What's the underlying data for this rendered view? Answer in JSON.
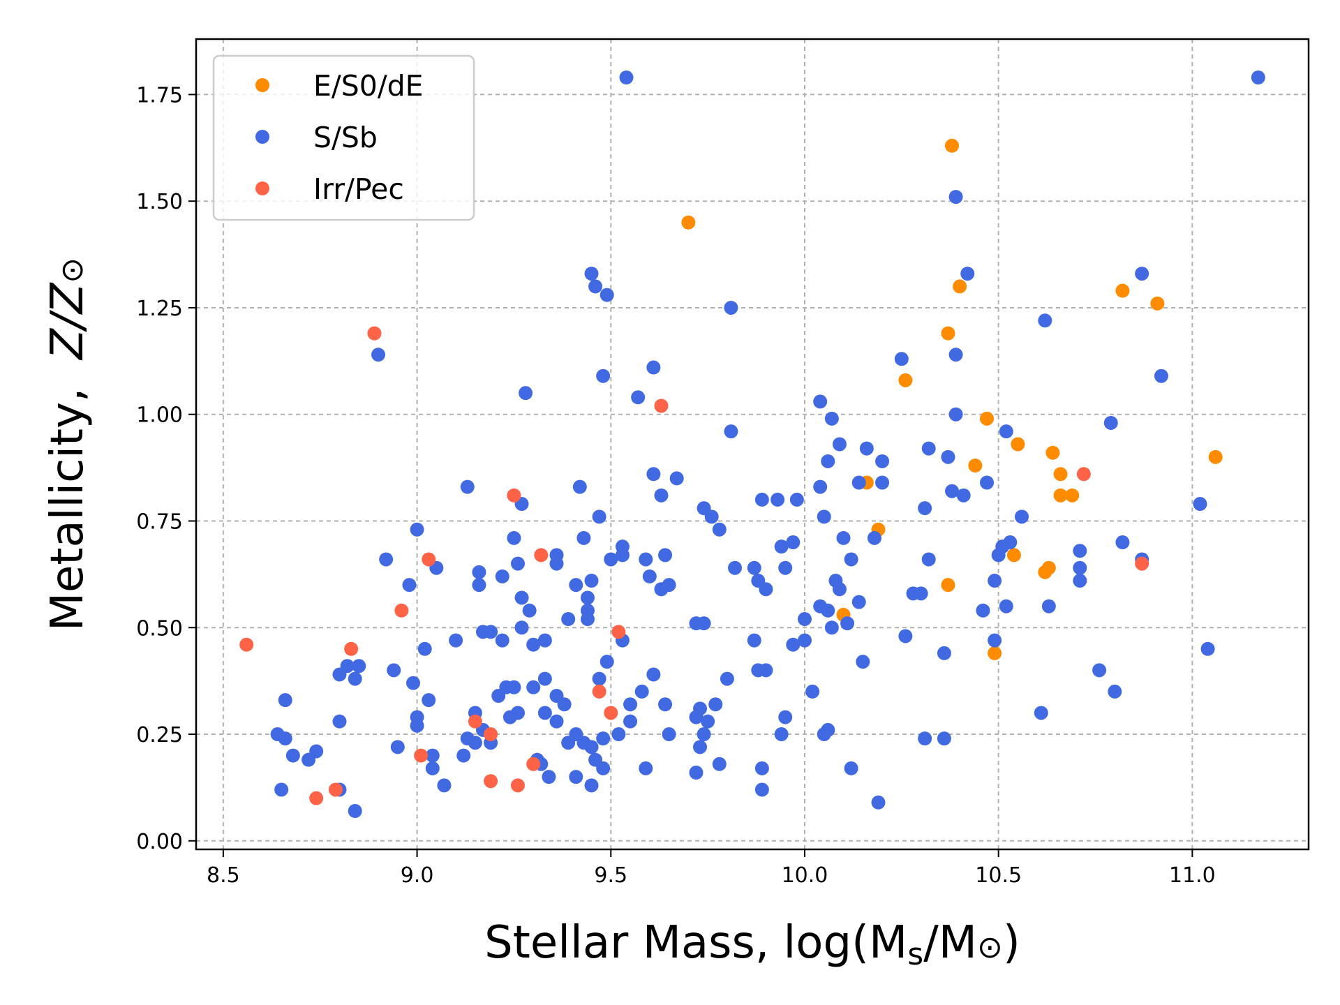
{
  "chart_data": {
    "type": "scatter",
    "xlabel": "Stellar Mass, log(M_s/M_⊙)",
    "xlabel_parts": {
      "prefix": "Stellar Mass, log(M",
      "sub": "s",
      "middle": "/M",
      "sun": "⊙",
      "suffix": ")"
    },
    "ylabel_parts": {
      "prefix": "Metallicity,  ",
      "italic": "Z/Z",
      "sun": "⊙"
    },
    "xlim": [
      8.43,
      11.3
    ],
    "ylim": [
      -0.02,
      1.88
    ],
    "x_ticks": [
      8.5,
      9.0,
      9.5,
      10.0,
      10.5,
      11.0
    ],
    "x_tick_labels": [
      "8.5",
      "9.0",
      "9.5",
      "10.0",
      "10.5",
      "11.0"
    ],
    "y_ticks": [
      0.0,
      0.25,
      0.5,
      0.75,
      1.0,
      1.25,
      1.5,
      1.75
    ],
    "y_tick_labels": [
      "0.00",
      "0.25",
      "0.50",
      "0.75",
      "1.00",
      "1.25",
      "1.50",
      "1.75"
    ],
    "grid": true,
    "legend_position": "top-left",
    "series": [
      {
        "name": "E/S0/dE",
        "color": "#ff8c00",
        "points": [
          [
            9.7,
            1.45
          ],
          [
            10.38,
            1.63
          ],
          [
            10.4,
            1.3
          ],
          [
            10.37,
            1.19
          ],
          [
            10.82,
            1.29
          ],
          [
            10.91,
            1.26
          ],
          [
            10.26,
            1.08
          ],
          [
            10.47,
            0.99
          ],
          [
            10.55,
            0.93
          ],
          [
            10.44,
            0.88
          ],
          [
            10.64,
            0.91
          ],
          [
            11.06,
            0.9
          ],
          [
            10.66,
            0.86
          ],
          [
            10.16,
            0.84
          ],
          [
            10.66,
            0.81
          ],
          [
            10.69,
            0.81
          ],
          [
            10.19,
            0.73
          ],
          [
            10.54,
            0.67
          ],
          [
            10.62,
            0.63
          ],
          [
            10.63,
            0.64
          ],
          [
            10.37,
            0.6
          ],
          [
            10.1,
            0.53
          ],
          [
            10.49,
            0.44
          ]
        ]
      },
      {
        "name": "S/Sb",
        "color": "#4169e1",
        "points": [
          [
            9.54,
            1.79
          ],
          [
            11.17,
            1.79
          ],
          [
            10.39,
            1.51
          ],
          [
            9.45,
            1.33
          ],
          [
            9.46,
            1.3
          ],
          [
            9.49,
            1.28
          ],
          [
            10.42,
            1.33
          ],
          [
            10.87,
            1.33
          ],
          [
            9.81,
            1.25
          ],
          [
            10.62,
            1.22
          ],
          [
            8.9,
            1.14
          ],
          [
            10.25,
            1.13
          ],
          [
            10.39,
            1.14
          ],
          [
            9.48,
            1.09
          ],
          [
            9.61,
            1.11
          ],
          [
            10.92,
            1.09
          ],
          [
            9.28,
            1.05
          ],
          [
            9.57,
            1.04
          ],
          [
            10.04,
            1.03
          ],
          [
            10.07,
            0.99
          ],
          [
            10.39,
            1.0
          ],
          [
            10.79,
            0.98
          ],
          [
            9.81,
            0.96
          ],
          [
            10.52,
            0.96
          ],
          [
            10.09,
            0.93
          ],
          [
            10.16,
            0.92
          ],
          [
            10.32,
            0.92
          ],
          [
            10.37,
            0.9
          ],
          [
            10.06,
            0.89
          ],
          [
            10.2,
            0.89
          ],
          [
            9.61,
            0.86
          ],
          [
            9.67,
            0.85
          ],
          [
            10.14,
            0.84
          ],
          [
            10.2,
            0.84
          ],
          [
            10.47,
            0.84
          ],
          [
            9.13,
            0.83
          ],
          [
            9.42,
            0.83
          ],
          [
            10.38,
            0.82
          ],
          [
            9.63,
            0.81
          ],
          [
            10.41,
            0.81
          ],
          [
            10.04,
            0.83
          ],
          [
            9.89,
            0.8
          ],
          [
            9.93,
            0.8
          ],
          [
            9.98,
            0.8
          ],
          [
            9.27,
            0.79
          ],
          [
            9.74,
            0.78
          ],
          [
            10.31,
            0.78
          ],
          [
            11.02,
            0.79
          ],
          [
            9.47,
            0.76
          ],
          [
            9.76,
            0.76
          ],
          [
            10.05,
            0.76
          ],
          [
            10.56,
            0.76
          ],
          [
            9.78,
            0.73
          ],
          [
            9.0,
            0.73
          ],
          [
            9.25,
            0.71
          ],
          [
            9.43,
            0.71
          ],
          [
            10.1,
            0.71
          ],
          [
            10.18,
            0.71
          ],
          [
            10.82,
            0.7
          ],
          [
            9.94,
            0.69
          ],
          [
            9.97,
            0.7
          ],
          [
            10.51,
            0.69
          ],
          [
            10.53,
            0.7
          ],
          [
            9.53,
            0.69
          ],
          [
            9.36,
            0.67
          ],
          [
            9.64,
            0.67
          ],
          [
            10.71,
            0.68
          ],
          [
            8.92,
            0.66
          ],
          [
            9.05,
            0.64
          ],
          [
            9.26,
            0.65
          ],
          [
            9.36,
            0.65
          ],
          [
            9.5,
            0.66
          ],
          [
            9.53,
            0.67
          ],
          [
            9.59,
            0.66
          ],
          [
            10.12,
            0.66
          ],
          [
            10.32,
            0.66
          ],
          [
            10.5,
            0.67
          ],
          [
            10.87,
            0.66
          ],
          [
            9.16,
            0.63
          ],
          [
            9.22,
            0.62
          ],
          [
            9.6,
            0.62
          ],
          [
            9.87,
            0.64
          ],
          [
            9.82,
            0.64
          ],
          [
            9.95,
            0.64
          ],
          [
            10.71,
            0.64
          ],
          [
            9.16,
            0.6
          ],
          [
            9.41,
            0.6
          ],
          [
            9.45,
            0.61
          ],
          [
            9.63,
            0.59
          ],
          [
            9.65,
            0.6
          ],
          [
            9.88,
            0.61
          ],
          [
            10.08,
            0.61
          ],
          [
            10.71,
            0.61
          ],
          [
            10.49,
            0.61
          ],
          [
            8.98,
            0.6
          ],
          [
            9.44,
            0.57
          ],
          [
            9.9,
            0.59
          ],
          [
            10.09,
            0.59
          ],
          [
            9.27,
            0.57
          ],
          [
            10.28,
            0.58
          ],
          [
            10.3,
            0.58
          ],
          [
            9.29,
            0.54
          ],
          [
            9.44,
            0.54
          ],
          [
            10.04,
            0.55
          ],
          [
            10.06,
            0.54
          ],
          [
            10.14,
            0.56
          ],
          [
            10.52,
            0.55
          ],
          [
            10.63,
            0.55
          ],
          [
            9.44,
            0.52
          ],
          [
            9.39,
            0.52
          ],
          [
            10.0,
            0.52
          ],
          [
            10.46,
            0.54
          ],
          [
            9.27,
            0.5
          ],
          [
            9.72,
            0.51
          ],
          [
            9.74,
            0.51
          ],
          [
            10.07,
            0.5
          ],
          [
            10.11,
            0.51
          ],
          [
            9.17,
            0.49
          ],
          [
            9.19,
            0.49
          ],
          [
            9.1,
            0.47
          ],
          [
            9.22,
            0.47
          ],
          [
            9.33,
            0.47
          ],
          [
            9.53,
            0.47
          ],
          [
            9.87,
            0.47
          ],
          [
            9.97,
            0.46
          ],
          [
            10.0,
            0.47
          ],
          [
            10.26,
            0.48
          ],
          [
            10.49,
            0.47
          ],
          [
            9.3,
            0.46
          ],
          [
            9.02,
            0.45
          ],
          [
            11.04,
            0.45
          ],
          [
            10.36,
            0.44
          ],
          [
            9.49,
            0.42
          ],
          [
            10.15,
            0.42
          ],
          [
            8.8,
            0.39
          ],
          [
            8.82,
            0.41
          ],
          [
            8.85,
            0.41
          ],
          [
            8.94,
            0.4
          ],
          [
            8.84,
            0.38
          ],
          [
            9.61,
            0.39
          ],
          [
            9.88,
            0.4
          ],
          [
            9.9,
            0.4
          ],
          [
            10.76,
            0.4
          ],
          [
            8.99,
            0.37
          ],
          [
            9.33,
            0.38
          ],
          [
            9.47,
            0.38
          ],
          [
            9.8,
            0.38
          ],
          [
            9.21,
            0.34
          ],
          [
            9.23,
            0.36
          ],
          [
            9.25,
            0.36
          ],
          [
            9.3,
            0.36
          ],
          [
            9.36,
            0.34
          ],
          [
            9.58,
            0.35
          ],
          [
            10.02,
            0.35
          ],
          [
            10.8,
            0.35
          ],
          [
            9.03,
            0.33
          ],
          [
            9.38,
            0.32
          ],
          [
            9.55,
            0.32
          ],
          [
            9.64,
            0.32
          ],
          [
            9.73,
            0.31
          ],
          [
            9.77,
            0.32
          ],
          [
            8.66,
            0.33
          ],
          [
            9.15,
            0.3
          ],
          [
            9.24,
            0.29
          ],
          [
            9.26,
            0.3
          ],
          [
            9.33,
            0.3
          ],
          [
            9.36,
            0.28
          ],
          [
            9.72,
            0.29
          ],
          [
            9.75,
            0.28
          ],
          [
            9.95,
            0.29
          ],
          [
            10.61,
            0.3
          ],
          [
            9.0,
            0.29
          ],
          [
            9.0,
            0.27
          ],
          [
            8.8,
            0.28
          ],
          [
            9.55,
            0.28
          ],
          [
            8.64,
            0.25
          ],
          [
            8.66,
            0.24
          ],
          [
            9.17,
            0.26
          ],
          [
            9.41,
            0.25
          ],
          [
            9.52,
            0.25
          ],
          [
            9.65,
            0.25
          ],
          [
            9.74,
            0.25
          ],
          [
            9.94,
            0.25
          ],
          [
            10.05,
            0.25
          ],
          [
            10.06,
            0.26
          ],
          [
            10.31,
            0.24
          ],
          [
            10.36,
            0.24
          ],
          [
            9.13,
            0.24
          ],
          [
            9.15,
            0.23
          ],
          [
            9.19,
            0.23
          ],
          [
            9.39,
            0.23
          ],
          [
            9.43,
            0.23
          ],
          [
            9.45,
            0.22
          ],
          [
            9.48,
            0.24
          ],
          [
            9.73,
            0.22
          ],
          [
            8.95,
            0.22
          ],
          [
            8.68,
            0.2
          ],
          [
            8.74,
            0.21
          ],
          [
            8.72,
            0.19
          ],
          [
            9.04,
            0.2
          ],
          [
            9.12,
            0.2
          ],
          [
            9.31,
            0.19
          ],
          [
            9.46,
            0.19
          ],
          [
            9.32,
            0.18
          ],
          [
            9.48,
            0.17
          ],
          [
            9.59,
            0.17
          ],
          [
            9.78,
            0.18
          ],
          [
            9.89,
            0.17
          ],
          [
            9.04,
            0.17
          ],
          [
            10.12,
            0.17
          ],
          [
            9.34,
            0.15
          ],
          [
            9.41,
            0.15
          ],
          [
            9.72,
            0.16
          ],
          [
            8.65,
            0.12
          ],
          [
            8.8,
            0.12
          ],
          [
            9.07,
            0.13
          ],
          [
            9.45,
            0.13
          ],
          [
            9.89,
            0.12
          ],
          [
            8.84,
            0.07
          ],
          [
            10.19,
            0.09
          ]
        ]
      },
      {
        "name": "Irr/Pec",
        "color": "#ff6347",
        "points": [
          [
            8.89,
            1.19
          ],
          [
            9.63,
            1.02
          ],
          [
            10.72,
            0.86
          ],
          [
            9.25,
            0.81
          ],
          [
            9.32,
            0.67
          ],
          [
            10.87,
            0.65
          ],
          [
            9.03,
            0.66
          ],
          [
            8.96,
            0.54
          ],
          [
            9.52,
            0.49
          ],
          [
            8.56,
            0.46
          ],
          [
            8.83,
            0.45
          ],
          [
            9.47,
            0.35
          ],
          [
            9.5,
            0.3
          ],
          [
            9.15,
            0.28
          ],
          [
            9.19,
            0.25
          ],
          [
            9.01,
            0.2
          ],
          [
            9.3,
            0.18
          ],
          [
            9.19,
            0.14
          ],
          [
            9.26,
            0.13
          ],
          [
            8.74,
            0.1
          ],
          [
            8.79,
            0.12
          ]
        ]
      }
    ]
  }
}
